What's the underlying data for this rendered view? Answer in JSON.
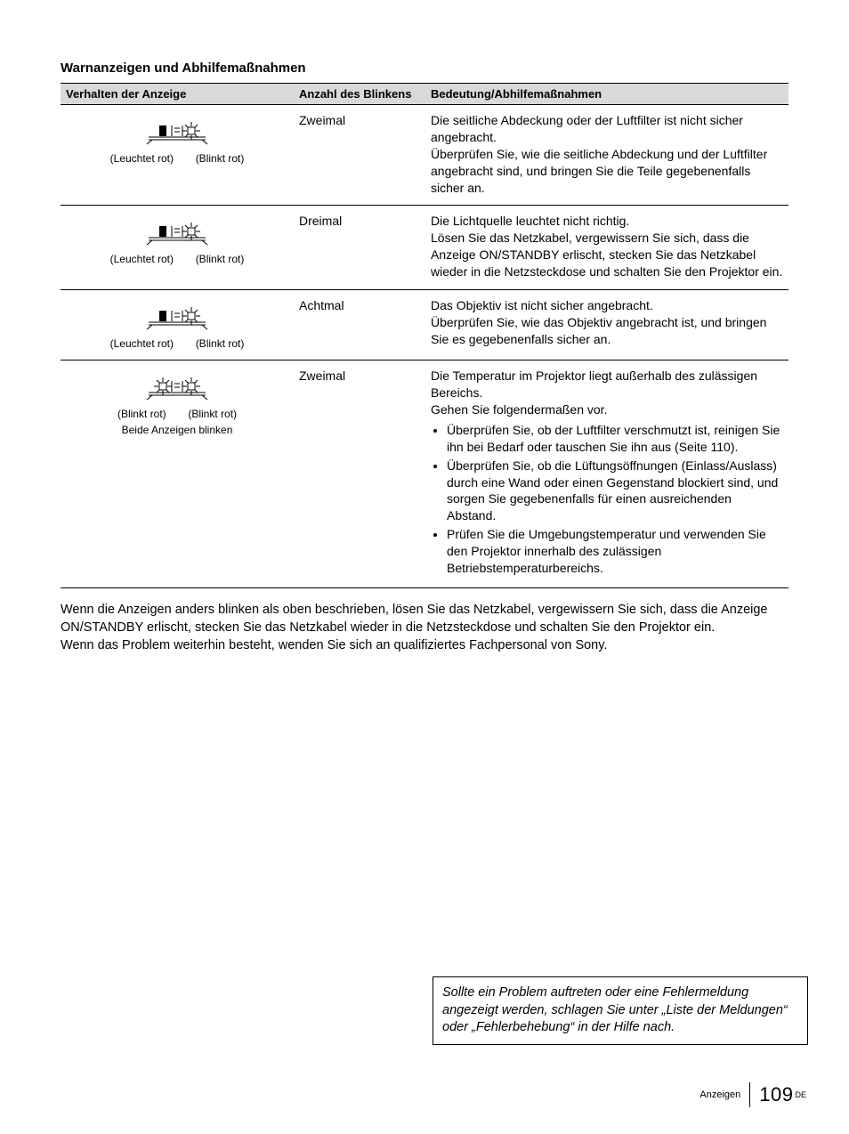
{
  "section_title": "Warnanzeigen und Abhilfemaßnahmen",
  "table": {
    "headers": {
      "behavior": "Verhalten der Anzeige",
      "count": "Anzahl des Blinkens",
      "meaning": "Bedeutung/Abhilfemaßnahmen"
    },
    "rows": [
      {
        "label_left": "(Leuchtet rot)",
        "label_right": "(Blinkt rot)",
        "icon": "solid-blink",
        "count": "Zweimal",
        "meaning_plain": "Die seitliche Abdeckung oder der Luftfilter ist nicht sicher angebracht.\nÜberprüfen Sie, wie die seitliche Abdeckung und der Luftfilter angebracht sind, und bringen Sie die Teile gegebenenfalls sicher an."
      },
      {
        "label_left": "(Leuchtet rot)",
        "label_right": "(Blinkt rot)",
        "icon": "solid-blink",
        "count": "Dreimal",
        "meaning_plain": "Die Lichtquelle leuchtet nicht richtig.\nLösen Sie das Netzkabel, vergewissern Sie sich, dass die Anzeige ON/STANDBY erlischt, stecken Sie das Netzkabel wieder in die Netzsteckdose und schalten Sie den Projektor ein."
      },
      {
        "label_left": "(Leuchtet rot)",
        "label_right": "(Blinkt rot)",
        "icon": "solid-blink",
        "count": "Achtmal",
        "meaning_plain": "Das Objektiv ist nicht sicher angebracht.\nÜberprüfen Sie, wie das Objektiv angebracht ist, und bringen Sie es gegebenenfalls sicher an."
      },
      {
        "label_left": "(Blinkt rot)",
        "label_right": "(Blinkt rot)",
        "subline": "Beide Anzeigen blinken",
        "icon": "blink-blink",
        "count": "Zweimal",
        "meaning_lead": "Die Temperatur im Projektor liegt außerhalb des zulässigen Bereichs.\nGehen Sie folgendermaßen vor.",
        "meaning_bullets": [
          "Überprüfen Sie, ob der Luftfilter verschmutzt ist, reinigen Sie ihn bei Bedarf oder tauschen Sie ihn aus (Seite 110).",
          "Überprüfen Sie, ob die Lüftungsöffnungen (Einlass/Auslass) durch eine Wand oder einen Gegenstand blockiert sind, und sorgen Sie gegebenenfalls für einen ausreichenden Abstand.",
          "Prüfen Sie die Umgebungstemperatur und verwenden Sie den Projektor innerhalb des zulässigen Betriebstemperaturbereichs."
        ]
      }
    ]
  },
  "body_paragraphs": [
    "Wenn die Anzeigen anders blinken als oben beschrieben, lösen Sie das Netzkabel, vergewissern Sie sich, dass die Anzeige ON/STANDBY erlischt, stecken Sie das Netzkabel wieder in die Netzsteckdose und schalten Sie den Projektor ein.",
    "Wenn das Problem weiterhin besteht, wenden Sie sich an qualifiziertes Fachpersonal von Sony."
  ],
  "hint_box": "Sollte ein Problem auftreten oder eine Fehlermeldung angezeigt werden, schlagen Sie unter „Liste der Meldungen“ oder „Fehlerbehebung“ in der Hilfe nach.",
  "footer": {
    "label": "Anzeigen",
    "page": "109",
    "lang": "DE"
  },
  "colors": {
    "header_bg": "#d9d9d9",
    "border": "#000000",
    "text": "#000000",
    "background": "#ffffff"
  }
}
